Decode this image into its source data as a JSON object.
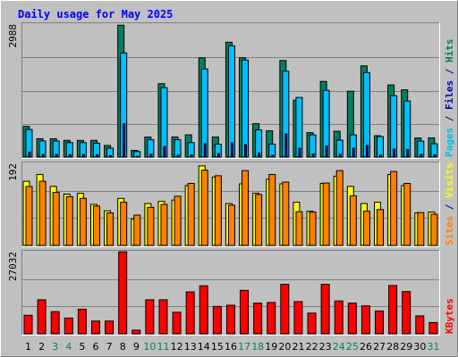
{
  "chart_data": {
    "type": "bar",
    "title": "Daily usage for May 2025",
    "days": [
      "1",
      "2",
      "3",
      "4",
      "5",
      "6",
      "7",
      "8",
      "9",
      "10",
      "11",
      "12",
      "13",
      "14",
      "15",
      "16",
      "17",
      "18",
      "19",
      "20",
      "21",
      "22",
      "23",
      "24",
      "25",
      "26",
      "27",
      "28",
      "29",
      "30",
      "31"
    ],
    "weekend_days": [
      "3",
      "4",
      "10",
      "11",
      "17",
      "18",
      "24",
      "25",
      "31"
    ],
    "panels": [
      {
        "id": "top",
        "max_label": "2988",
        "ymax": 2988,
        "legend": [
          {
            "text": "Pages",
            "color": "#00c0e0"
          },
          {
            "text": " / ",
            "color": "#000080"
          },
          {
            "text": "Files",
            "color": "#0000c0"
          },
          {
            "text": " / ",
            "color": "#000080"
          },
          {
            "text": "Hits",
            "color": "#008060"
          }
        ],
        "series": [
          {
            "name": "Hits",
            "color": "#008060",
            "values": [
              690,
              412,
              412,
              375,
              375,
              375,
              260,
              2962,
              150,
              450,
              1650,
              450,
              500,
              2230,
              450,
              2580,
              2230,
              750,
              590,
              2170,
              1280,
              550,
              1700,
              580,
              1480,
              2050,
              480,
              1620,
              1510,
              430,
              430
            ]
          },
          {
            "name": "Files",
            "color": "#00c0ff",
            "values": [
              620,
              362,
              362,
              325,
              325,
              312,
              200,
              2340,
              125,
              390,
              1560,
              390,
              325,
              1980,
              290,
              2500,
              2180,
              610,
              290,
              1930,
              1340,
              500,
              1500,
              380,
              500,
              1900,
              460,
              1380,
              1260,
              360,
              300
            ]
          },
          {
            "name": "Pages",
            "color": "#0000c0",
            "values": [
              110,
              60,
              60,
              55,
              60,
              50,
              30,
              750,
              20,
              60,
              240,
              40,
              50,
              300,
              80,
              320,
              280,
              90,
              40,
              520,
              200,
              70,
              250,
              60,
              200,
              260,
              40,
              180,
              170,
              60,
              50
            ]
          }
        ]
      },
      {
        "id": "middle",
        "max_label": "192",
        "ymax": 192,
        "legend": [
          {
            "text": "Sites",
            "color": "#ff8000"
          },
          {
            "text": " / ",
            "color": "#000080"
          },
          {
            "text": "Visits",
            "color": "#ffff00"
          }
        ],
        "series": [
          {
            "name": "Visits",
            "color": "#ffff00",
            "values": [
              150,
              166,
              138,
              120,
              122,
              96,
              81,
              110,
              62,
              98,
              103,
              106,
              140,
              186,
              160,
              98,
              144,
              122,
              155,
              144,
              101,
              80,
              145,
              162,
              138,
              98,
              101,
              166,
              140,
              76,
              78
            ]
          },
          {
            "name": "Sites",
            "color": "#ff8000",
            "values": [
              138,
              150,
              124,
              114,
              110,
              92,
              76,
              101,
              71,
              89,
              96,
              115,
              145,
              176,
              163,
              94,
              175,
              119,
              166,
              148,
              79,
              78,
              146,
              175,
              116,
              80,
              84,
              173,
              145,
              77,
              73
            ]
          }
        ]
      },
      {
        "id": "bottom",
        "max_label": "27032",
        "ymax": 27032,
        "legend": [
          {
            "text": "KBytes",
            "color": "#ff0000"
          }
        ],
        "series": [
          {
            "name": "KBytes",
            "color": "#ff0000",
            "values": [
              6100,
              11200,
              7300,
              5200,
              8100,
              4200,
              4200,
              27000,
              1200,
              11200,
              11200,
              7100,
              13800,
              15800,
              9000,
              9400,
              14300,
              10100,
              10300,
              16300,
              10600,
              6800,
              16300,
              10800,
              10100,
              9200,
              7500,
              15900,
              13900,
              5900,
              3700
            ]
          }
        ]
      }
    ]
  }
}
